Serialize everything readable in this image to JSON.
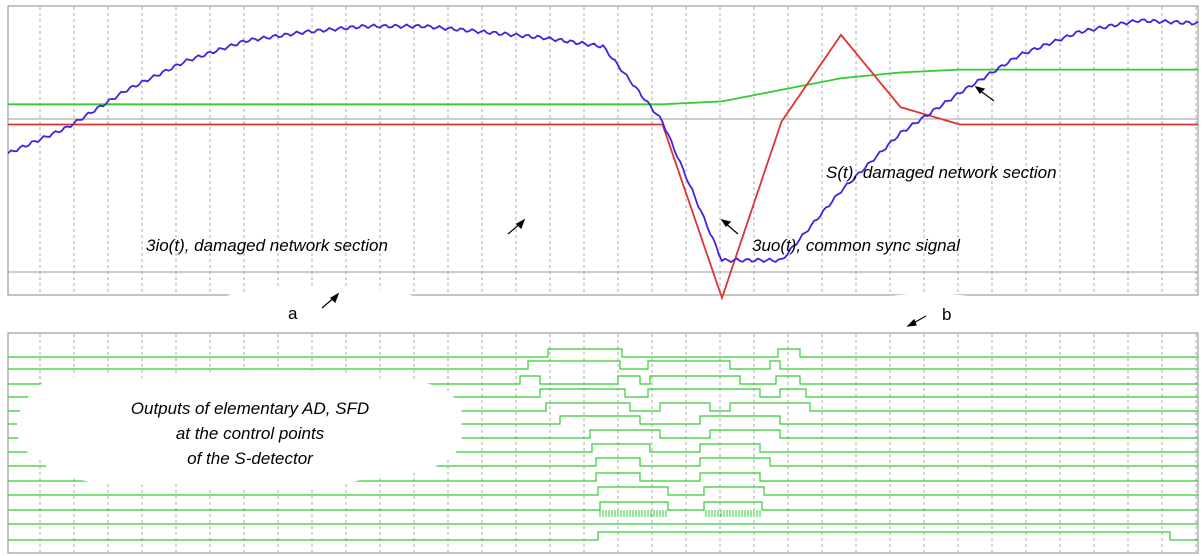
{
  "chart_data": [
    {
      "type": "line",
      "title": "",
      "xlabel": "",
      "ylabel": "",
      "ylim": [
        0,
        10
      ],
      "grid": true,
      "panel_label": "a",
      "x": [
        0,
        5,
        10,
        15,
        20,
        25,
        30,
        35,
        40,
        45,
        50,
        55,
        60,
        65,
        70,
        75,
        80,
        85,
        90,
        95,
        100
      ],
      "series": [
        {
          "name": "S(t),  damaged network section",
          "color": "#33cc33",
          "values": [
            6.6,
            6.6,
            6.6,
            6.6,
            6.6,
            6.6,
            6.6,
            6.6,
            6.6,
            6.6,
            6.6,
            6.6,
            6.7,
            7.1,
            7.5,
            7.7,
            7.8,
            7.8,
            7.8,
            7.8,
            7.8
          ]
        },
        {
          "name": "3io(t), damaged network section",
          "color": "#dd3333",
          "values": [
            5.9,
            5.9,
            5.9,
            5.9,
            5.9,
            5.9,
            5.9,
            5.9,
            5.9,
            5.9,
            5.9,
            5.9,
            -0.1,
            6.0,
            9.0,
            6.5,
            5.9,
            5.9,
            5.9,
            5.9,
            5.9
          ]
        },
        {
          "name": "3uo(t), common sync signal",
          "color": "#4422dd",
          "values": [
            4.9,
            5.8,
            7.1,
            8.1,
            8.8,
            9.1,
            9.3,
            9.3,
            9.1,
            8.9,
            8.6,
            6.0,
            1.2,
            1.2,
            3.6,
            5.6,
            7.0,
            8.3,
            9.1,
            9.5,
            9.4
          ]
        }
      ]
    },
    {
      "type": "line",
      "title": "",
      "panel_label": "b",
      "series": [
        {
          "name": "",
          "values": [
            0,
            0,
            1,
            1,
            0,
            0
          ]
        }
      ]
    }
  ],
  "annotations": {
    "s_label": "S(t),  damaged network section",
    "io_label": "3io(t), damaged network section",
    "uo_label": "3uo(t), common sync signal",
    "outputs_line1": "Outputs of elementary AD, SFD",
    "outputs_line2": "at the control points",
    "outputs_line3": "of the S-detector",
    "label_a": "a",
    "label_b": "b"
  },
  "colors": {
    "green": "#33cc33",
    "red": "#dd3333",
    "blue": "#4422dd",
    "grid": "#999999",
    "frame": "#888888"
  }
}
